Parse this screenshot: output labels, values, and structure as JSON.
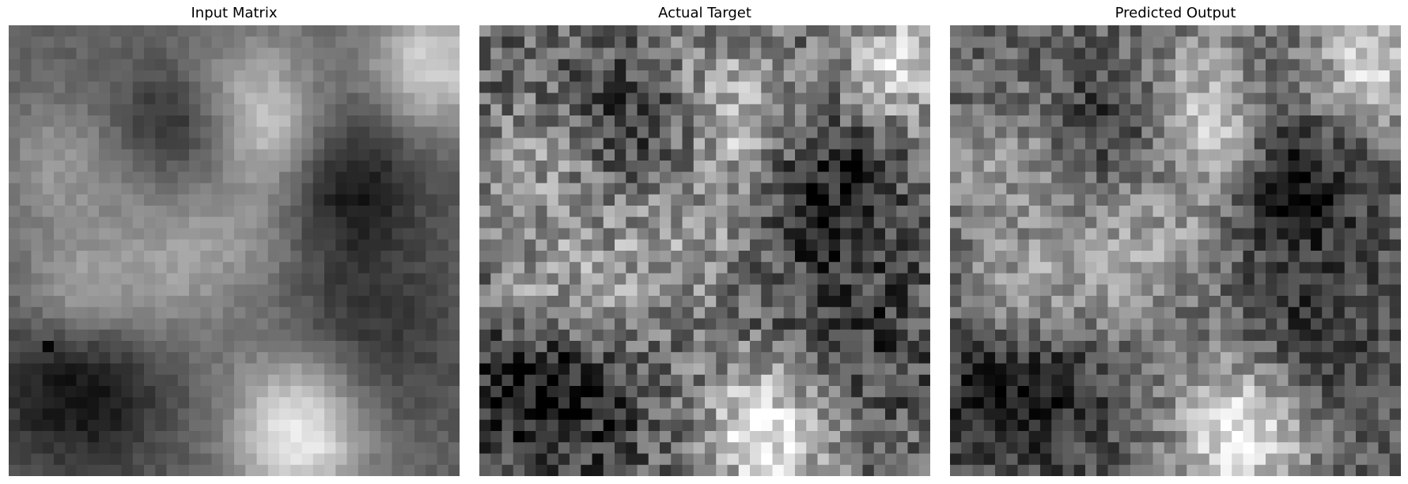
{
  "figure": {
    "panels": [
      {
        "title": "Input Matrix"
      },
      {
        "title": "Actual Target"
      },
      {
        "title": "Predicted Output"
      }
    ]
  },
  "chart_data": [
    {
      "type": "heatmap",
      "title": "Input Matrix",
      "colormap": "gray",
      "rows": 40,
      "cols": 40,
      "grid": false,
      "axes": "off",
      "notes_visible": "smooth blobby grayscale field; bright top-right corner; single near-black cell at left edge around row 28"
    },
    {
      "type": "heatmap",
      "title": "Actual Target",
      "colormap": "gray",
      "rows": 40,
      "cols": 40,
      "grid": false,
      "axes": "off"
    },
    {
      "type": "heatmap",
      "title": "Predicted Output",
      "colormap": "gray",
      "rows": 40,
      "cols": 40,
      "grid": false,
      "axes": "off"
    }
  ]
}
